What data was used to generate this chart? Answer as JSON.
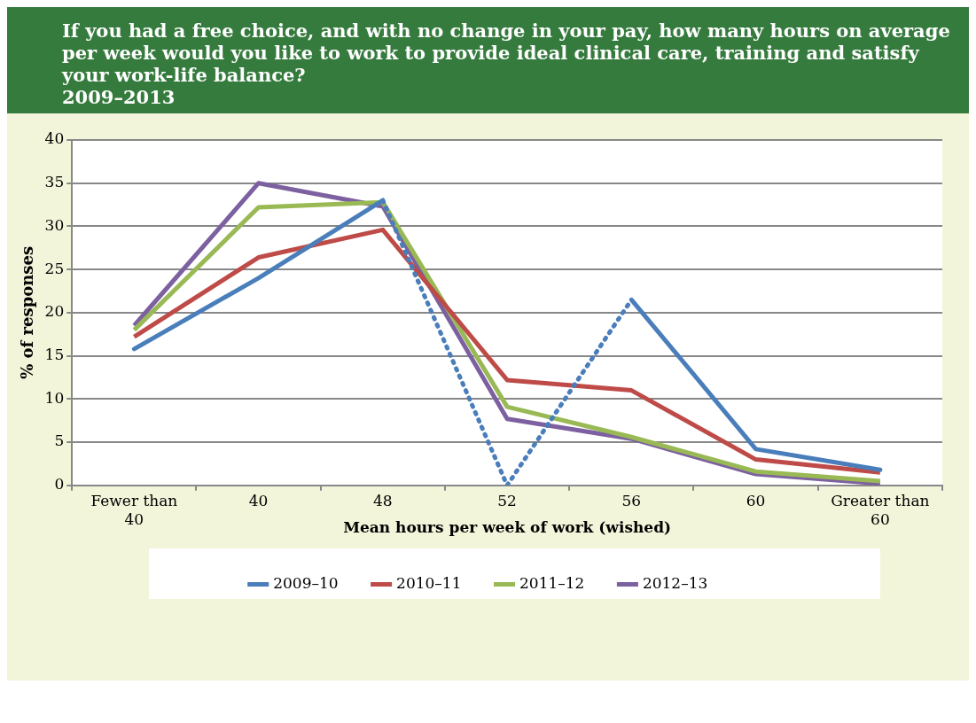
{
  "chart_data": {
    "type": "line",
    "title": "If you had a free choice, and with no change in your pay, how many hours on average per week would you like to work to provide ideal clinical care, training and satisfy your work-life balance?",
    "subtitle": "2009–2013",
    "xlabel": "Mean hours per week of work (wished)",
    "ylabel": "% of responses",
    "categories": [
      "Fewer than 40",
      "40",
      "48",
      "52",
      "56",
      "60",
      "Greater than 60"
    ],
    "series": [
      {
        "name": "2009–10",
        "color": "#4a7ebb",
        "line_style": [
          "solid",
          "solid",
          "dotted",
          "dotted",
          "solid",
          "solid"
        ],
        "values": [
          15.8,
          24,
          33,
          0,
          21.5,
          4.2,
          1.8
        ]
      },
      {
        "name": "2010–11",
        "color": "#be4b48",
        "values": [
          17.2,
          26.4,
          29.6,
          12.2,
          11,
          3,
          1.5
        ]
      },
      {
        "name": "2011–12",
        "color": "#98b954",
        "values": [
          18,
          32.2,
          32.8,
          9.1,
          5.6,
          1.6,
          0.5
        ]
      },
      {
        "name": "2012–13",
        "color": "#7d60a0",
        "values": [
          18.5,
          35,
          32.3,
          7.7,
          5.4,
          1.3,
          0.2
        ]
      }
    ],
    "ylim": [
      0,
      40
    ],
    "yticks": [
      0,
      5,
      10,
      15,
      20,
      25,
      30,
      35,
      40
    ],
    "grid": "y",
    "legend": "bottom",
    "line_style": "solid",
    "marker": "none"
  }
}
